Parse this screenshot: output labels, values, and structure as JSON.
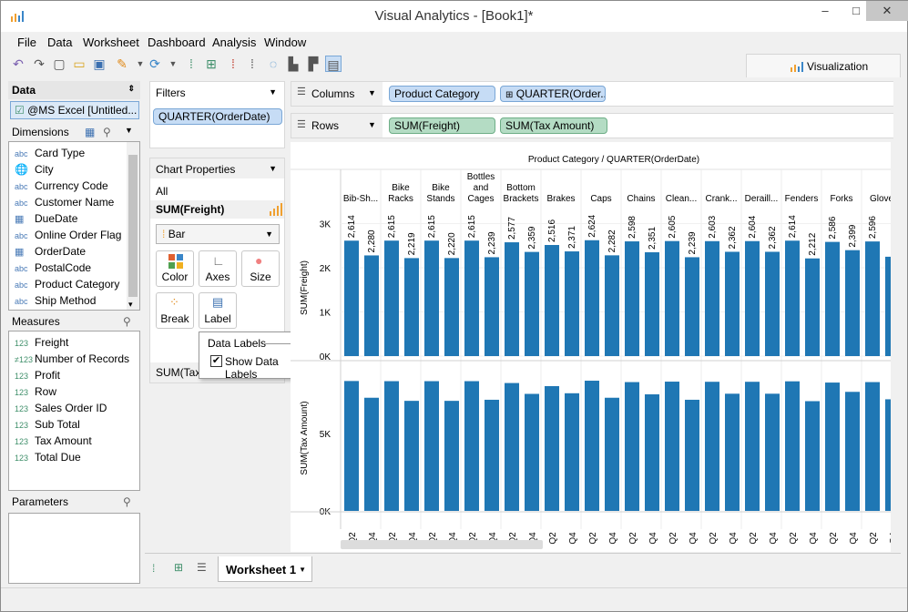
{
  "window": {
    "title": "Visual Analytics - [Book1]*"
  },
  "menu": [
    "File",
    "Data",
    "Worksheet",
    "Dashboard",
    "Analysis",
    "Window"
  ],
  "visualization_tab": "Visualization",
  "data_pane": {
    "header": "Data",
    "source": "@MS Excel [Untitled...",
    "dimensions_header": "Dimensions",
    "dimensions": [
      {
        "type": "abc",
        "label": "Card Type"
      },
      {
        "type": "geo",
        "label": "City"
      },
      {
        "type": "abc",
        "label": "Currency Code"
      },
      {
        "type": "abc",
        "label": "Customer Name"
      },
      {
        "type": "date",
        "label": "DueDate"
      },
      {
        "type": "abc",
        "label": "Online Order Flag"
      },
      {
        "type": "date",
        "label": "OrderDate"
      },
      {
        "type": "abc",
        "label": "PostalCode"
      },
      {
        "type": "abc",
        "label": "Product Category"
      },
      {
        "type": "abc",
        "label": "Ship Method"
      }
    ],
    "measures_header": "Measures",
    "measures": [
      {
        "type": "123",
        "label": "Freight"
      },
      {
        "type": "calc",
        "label": "Number of Records"
      },
      {
        "type": "123",
        "label": "Profit"
      },
      {
        "type": "123",
        "label": "Row"
      },
      {
        "type": "123",
        "label": "Sales Order ID"
      },
      {
        "type": "123",
        "label": "Sub Total"
      },
      {
        "type": "123",
        "label": "Tax Amount"
      },
      {
        "type": "123",
        "label": "Total Due"
      }
    ],
    "parameters_header": "Parameters"
  },
  "filters": {
    "header": "Filters",
    "items": [
      "QUARTER(OrderDate)"
    ]
  },
  "chart_properties": {
    "header": "Chart Properties",
    "all_label": "All",
    "measure": "SUM(Freight)",
    "mark_type": "Bar",
    "buttons": [
      "Color",
      "Axes",
      "Size",
      "Break",
      "Label"
    ],
    "next_measure": "SUM(Tax A"
  },
  "data_labels_popup": {
    "title": "Data Labels",
    "checkbox_label": "Show Data Labels",
    "checked": true
  },
  "shelves": {
    "columns_label": "Columns",
    "rows_label": "Rows",
    "columns": [
      "Product Category",
      "QUARTER(Order..."
    ],
    "rows": [
      "SUM(Freight)",
      "SUM(Tax Amount)"
    ]
  },
  "chart_data": {
    "type": "bar",
    "title": "Product Category / QUARTER(OrderDate)",
    "categories": [
      "Bib-Sh...",
      "Bike Racks",
      "Bike Stands",
      "Bottles and Cages",
      "Bottom Brackets",
      "Brakes",
      "Caps",
      "Chains",
      "Clean...",
      "Crank...",
      "Deraill...",
      "Fenders",
      "Forks",
      "Glove"
    ],
    "quarters": [
      "Q2",
      "Q4"
    ],
    "freight": {
      "ylabel": "SUM(Freight)",
      "ticks": [
        "3K",
        "2K",
        "1K",
        "0K"
      ],
      "ylim": [
        0,
        3300
      ],
      "values": [
        2614,
        2280,
        2615,
        2219,
        2615,
        2220,
        2615,
        2239,
        2577,
        2359,
        2516,
        2371,
        2624,
        2282,
        2598,
        2351,
        2605,
        2239,
        2603,
        2362,
        2604,
        2362,
        2614,
        2212,
        2586,
        2399,
        2596,
        2250
      ],
      "labels": [
        "2,614",
        "2,280",
        "2,615",
        "2,219",
        "2,615",
        "2,220",
        "2,615",
        "2,239",
        "2,577",
        "2,359",
        "2,516",
        "2,371",
        "2,624",
        "2,282",
        "2,598",
        "2,351",
        "2,605",
        "2,239",
        "2,603",
        "2,362",
        "2,604",
        "2,362",
        "2,614",
        "2,212",
        "2,586",
        "2,399",
        "2,596",
        ""
      ]
    },
    "tax": {
      "ylabel": "SUM(Tax Amount)",
      "ticks": [
        "5K",
        "0K"
      ],
      "ylim": [
        0,
        9400
      ],
      "values": [
        8380,
        7300,
        8370,
        7100,
        8370,
        7100,
        8370,
        7170,
        8250,
        7550,
        8050,
        7590,
        8400,
        7300,
        8310,
        7520,
        8340,
        7170,
        8330,
        7560,
        8330,
        7560,
        8360,
        7080,
        8280,
        7680,
        8310,
        7200
      ]
    },
    "bar_color": "#1f77b4"
  }
}
